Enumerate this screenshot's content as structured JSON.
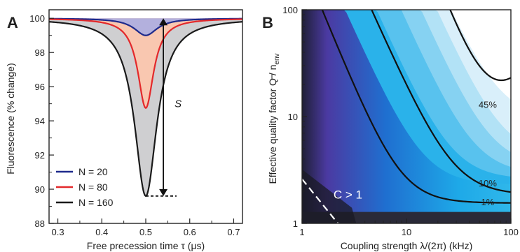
{
  "panels": {
    "a_label": "A",
    "b_label": "B"
  },
  "chart_data": [
    {
      "type": "line",
      "panel": "A",
      "xlabel": "Free precession time τ (μs)",
      "ylabel": "Fluorescence (% change)",
      "xlim": [
        0.28,
        0.72
      ],
      "ylim": [
        88,
        100.5
      ],
      "xticks": [
        0.3,
        0.4,
        0.5,
        0.6,
        0.7
      ],
      "xtick_labels": [
        "0.3",
        "0.4",
        "0.5",
        "0.6",
        "0.7"
      ],
      "yticks": [
        88,
        90,
        92,
        94,
        96,
        98,
        100
      ],
      "ytick_labels": [
        "88",
        "90",
        "92",
        "94",
        "96",
        "98",
        "100"
      ],
      "x_minor_ticks": [
        0.35,
        0.45,
        0.55,
        0.65
      ],
      "grid": false,
      "legend_position": "bottom-left",
      "series": [
        {
          "name": "N  =  20",
          "color": "#1e2a8c",
          "fill": "#b3b0dd",
          "center": 0.5,
          "depth": 1.0,
          "width": 0.032
        },
        {
          "name": "N  =  80",
          "color": "#e3292b",
          "fill": "#f9c7b0",
          "center": 0.5,
          "depth": 5.25,
          "width": 0.022
        },
        {
          "name": "N  =  160",
          "color": "#1a1a1a",
          "fill": "#cfcfd1",
          "center": 0.5,
          "depth": 10.4,
          "width": 0.031
        }
      ],
      "annotation": {
        "text": "S",
        "arrow_x": 0.54,
        "arrow_top": 100,
        "arrow_bottom": 89.6,
        "dash_from": 0.5,
        "dash_to": 0.57
      }
    },
    {
      "type": "heatmap",
      "panel": "B",
      "xlabel": "Coupling strength λ/(2π) (kHz)",
      "ylabel_main": "Effective quality factor Q / n",
      "ylabel_sub": "env",
      "x_scale": "log",
      "y_scale": "log",
      "xlim": [
        1,
        100
      ],
      "ylim": [
        1,
        100
      ],
      "xticks": [
        1,
        10,
        100
      ],
      "xtick_labels": [
        "1",
        "10",
        "100"
      ],
      "yticks": [
        1,
        10,
        100
      ],
      "ytick_labels": [
        "1",
        "10",
        "100"
      ],
      "colors": {
        "low": "#1a1a2a",
        "mid": "#4a3fa0",
        "high": "#18a8e6",
        "top": "#ffffff"
      },
      "contours": [
        {
          "label": "1%",
          "label_x": 60,
          "label_y": 1.6
        },
        {
          "label": "10%",
          "label_x": 60,
          "label_y": 2.4
        },
        {
          "label": "45%",
          "label_x": 60,
          "label_y": 13
        }
      ],
      "region_label": "C > 1"
    }
  ]
}
